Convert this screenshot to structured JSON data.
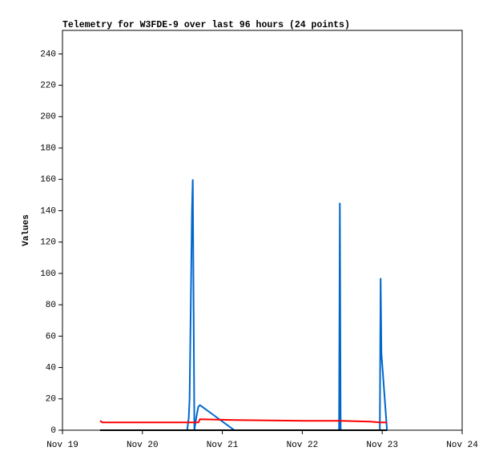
{
  "chart_data": {
    "type": "line",
    "title": "Telemetry for W3FDE-9 over last 96 hours (24 points)",
    "y_label": "Values",
    "x": [
      19.47,
      19.5,
      20.56,
      20.58,
      20.59,
      20.6,
      20.61,
      20.62,
      20.63,
      20.64,
      20.65,
      20.68,
      20.7,
      20.72,
      21.15,
      22.03,
      22.46,
      22.47,
      22.48,
      22.85,
      22.97,
      22.98,
      22.99,
      23.06
    ],
    "series": [
      {
        "color": "#000000",
        "values": [
          0,
          0,
          0,
          0,
          0,
          0,
          0,
          0,
          0,
          0,
          0,
          0,
          0,
          0,
          0,
          0,
          0,
          0,
          0,
          0,
          0,
          0,
          0,
          0
        ]
      },
      {
        "color": "#ff0000",
        "values": [
          6,
          5,
          5,
          5,
          5,
          5,
          5,
          5,
          5,
          5,
          5,
          5,
          5,
          7,
          6.5,
          6,
          6,
          6,
          6,
          5.5,
          5,
          5,
          5,
          5
        ]
      },
      {
        "color": "#0066cc",
        "values": [
          0,
          0,
          0,
          8,
          20,
          60,
          100,
          140,
          160,
          80,
          0,
          10,
          15,
          16,
          0,
          0,
          0,
          145,
          0,
          0,
          0,
          97,
          49,
          0
        ]
      }
    ],
    "xlim": [
      19,
      24
    ],
    "xticks": [
      {
        "value": 19,
        "label": "Nov 19"
      },
      {
        "value": 20,
        "label": "Nov 20"
      },
      {
        "value": 21,
        "label": "Nov 21"
      },
      {
        "value": 22,
        "label": "Nov 22"
      },
      {
        "value": 23,
        "label": "Nov 23"
      },
      {
        "value": 24,
        "label": "Nov 24"
      }
    ],
    "ylim": [
      0,
      255
    ],
    "yticks": [
      0,
      20,
      40,
      60,
      80,
      100,
      120,
      140,
      160,
      180,
      200,
      220,
      240
    ],
    "grid": false
  }
}
